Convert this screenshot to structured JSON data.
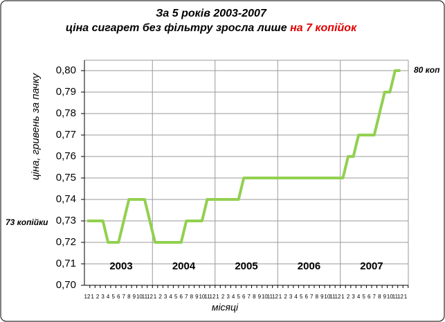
{
  "chart_data": {
    "type": "line",
    "title": "За 5 років 2003-2007",
    "subtitle": [
      "ціна сигарет без фільтру  зросла лише",
      "на 7 копійок"
    ],
    "y_label": "ціна, гривень за пачку",
    "x_label": "місяці",
    "categories": [
      "12",
      "1",
      "2",
      "3",
      "4",
      "5",
      "6",
      "7",
      "8",
      "9",
      "10",
      "11",
      "12",
      "1",
      "2",
      "3",
      "4",
      "5",
      "6",
      "7",
      "8",
      "9",
      "10",
      "11",
      "12",
      "1",
      "2",
      "3",
      "4",
      "5",
      "6",
      "7",
      "8",
      "9",
      "10",
      "11",
      "12",
      "1",
      "2",
      "3",
      "4",
      "5",
      "6",
      "7",
      "8",
      "9",
      "10",
      "11",
      "12",
      "1",
      "2",
      "3",
      "4",
      "5",
      "6",
      "7",
      "8",
      "9",
      "10",
      "11",
      "12",
      "1"
    ],
    "years": [
      "2003",
      "2004",
      "2005",
      "2006",
      "2007"
    ],
    "annotations": [
      "73 копійки",
      "80 коп"
    ],
    "series": [
      {
        "color": "#92d050",
        "values": [
          0.73,
          0.73,
          0.73,
          0.73,
          0.72,
          0.72,
          0.72,
          0.73,
          0.74,
          0.74,
          0.74,
          0.74,
          0.73,
          0.72,
          0.72,
          0.72,
          0.72,
          0.72,
          0.72,
          0.73,
          0.73,
          0.73,
          0.73,
          0.74,
          0.74,
          0.74,
          0.74,
          0.74,
          0.74,
          0.74,
          0.75,
          0.75,
          0.75,
          0.75,
          0.75,
          0.75,
          0.75,
          0.75,
          0.75,
          0.75,
          0.75,
          0.75,
          0.75,
          0.75,
          0.75,
          0.75,
          0.75,
          0.75,
          0.75,
          0.75,
          0.76,
          0.76,
          0.77,
          0.77,
          0.77,
          0.77,
          0.78,
          0.79,
          0.79,
          0.8,
          0.8,
          null
        ]
      }
    ],
    "ylim": [
      0.7,
      0.8
    ],
    "yticks": [
      {
        "value": 0.7,
        "label": "0,70"
      },
      {
        "value": 0.71,
        "label": "0,71"
      },
      {
        "value": 0.72,
        "label": "0,72"
      },
      {
        "value": 0.73,
        "label": "0,73"
      },
      {
        "value": 0.74,
        "label": "0,74"
      },
      {
        "value": 0.75,
        "label": "0,75"
      },
      {
        "value": 0.76,
        "label": "0,76"
      },
      {
        "value": 0.77,
        "label": "0,77"
      },
      {
        "value": 0.78,
        "label": "0,78"
      },
      {
        "value": 0.79,
        "label": "0,79"
      },
      {
        "value": 0.8,
        "label": "0,80"
      }
    ],
    "grid": true,
    "annotation_color": "#e00000"
  }
}
